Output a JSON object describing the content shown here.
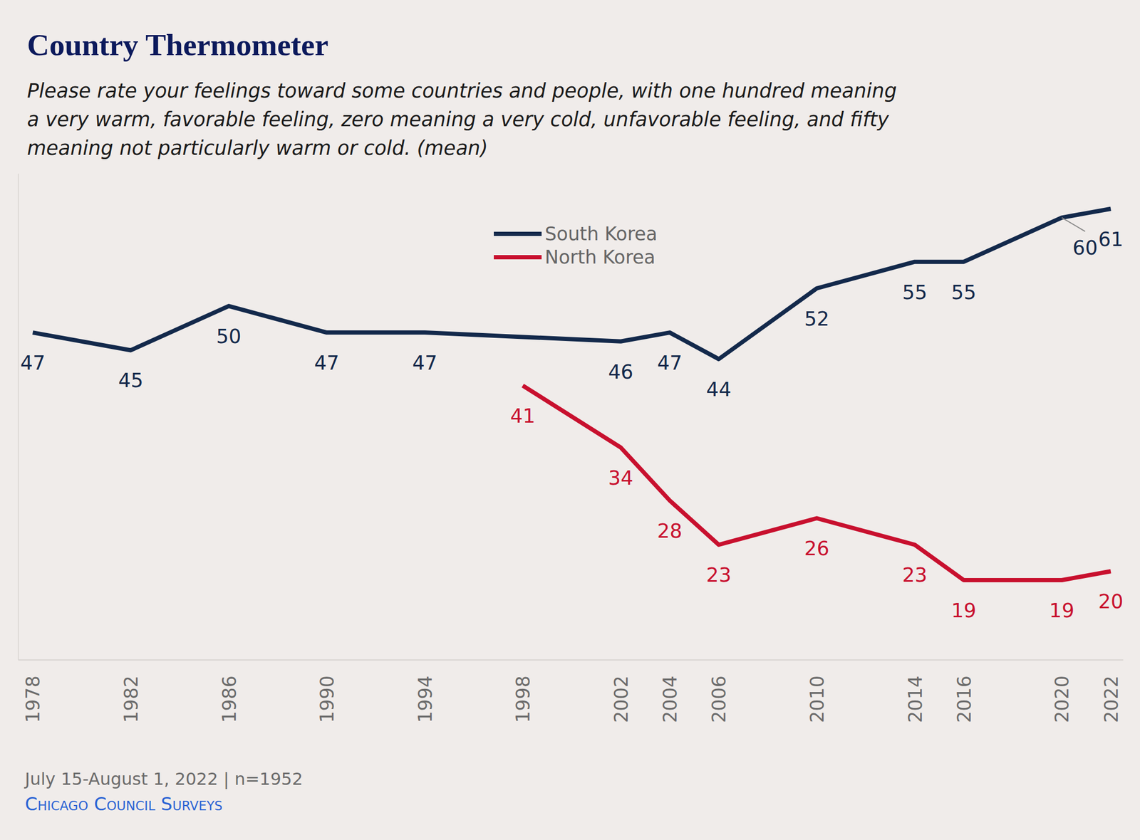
{
  "chart_data": {
    "type": "line",
    "title": "Country Thermometer",
    "subtitle": [
      "Please rate your feelings toward some countries and people, with one hundred meaning",
      "a very warm, favorable feeling, zero meaning a very cold, unfavorable feeling, and fifty",
      "meaning not particularly warm or cold. (mean)"
    ],
    "source": "July 15-August 1, 2022 | n=1952",
    "credit": "Chicago Council Surveys",
    "xlim": [
      1977.4,
      2022.5
    ],
    "xticks": [
      1978,
      1982,
      1986,
      1990,
      1994,
      1998,
      2002,
      2004,
      2006,
      2010,
      2014,
      2016,
      2020,
      2022
    ],
    "ylim": [
      10,
      65
    ],
    "yticks": [],
    "tick_labels": "x",
    "data_labels": true,
    "legend": "top",
    "series": [
      {
        "name": "South Korea",
        "color": "#13294b",
        "x": [
          1978,
          1982,
          1986,
          1990,
          1994,
          2002,
          2004,
          2006,
          2010,
          2014,
          2016,
          2020,
          2022
        ],
        "values": [
          47,
          45,
          50,
          47,
          47,
          46,
          47,
          44,
          52,
          55,
          55,
          60,
          61
        ]
      },
      {
        "name": "North Korea",
        "color": "#c8102e",
        "x": [
          1998,
          2002,
          2004,
          2006,
          2010,
          2014,
          2016,
          2020,
          2022
        ],
        "values": [
          41,
          34,
          28,
          23,
          26,
          23,
          19,
          19,
          20
        ]
      }
    ]
  }
}
